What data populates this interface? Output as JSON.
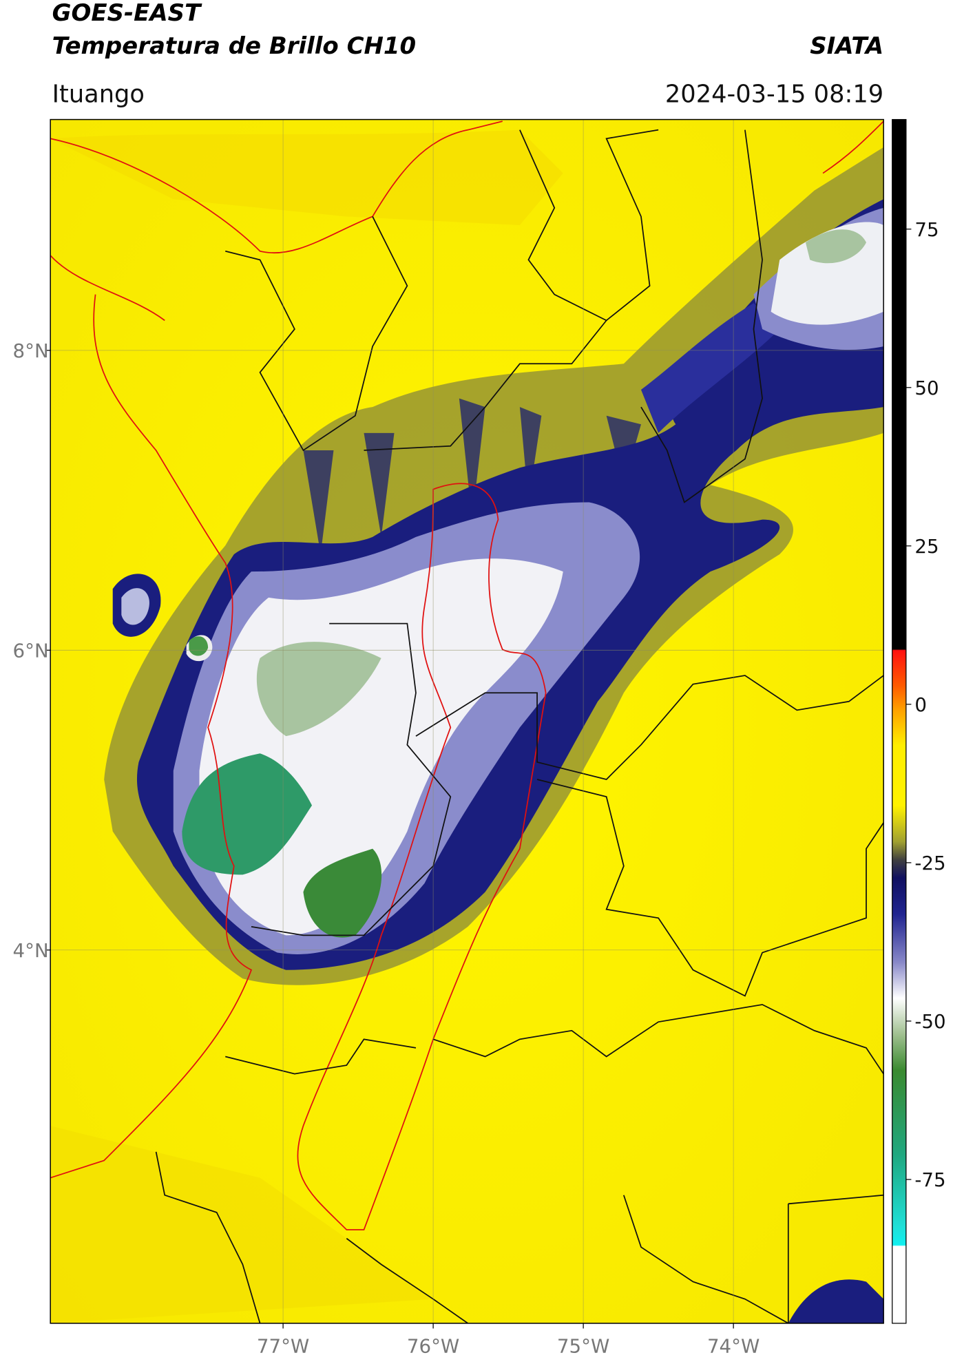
{
  "header": {
    "title": "GOES-EAST",
    "subtitle": "Temperatura de Brillo CH10",
    "source": "SIATA",
    "location": "Ituango",
    "datetime": "2024-03-15 08:19"
  },
  "map": {
    "xlim": [
      -78.55,
      -73.0
    ],
    "ylim": [
      1.51,
      9.54
    ],
    "xticks": [
      {
        "value": -77,
        "label": "77°W"
      },
      {
        "value": -76,
        "label": "76°W"
      },
      {
        "value": -75,
        "label": "75°W"
      },
      {
        "value": -74,
        "label": "74°W"
      }
    ],
    "yticks": [
      {
        "value": 8,
        "label": "8°N"
      },
      {
        "value": 6,
        "label": "6°N"
      },
      {
        "value": 4,
        "label": "4°N"
      }
    ],
    "grid": true
  },
  "colorbar": {
    "lim": [
      -97.7,
      92.3
    ],
    "ticks": [
      75,
      50,
      25,
      0,
      -25,
      -50,
      -75
    ]
  }
}
